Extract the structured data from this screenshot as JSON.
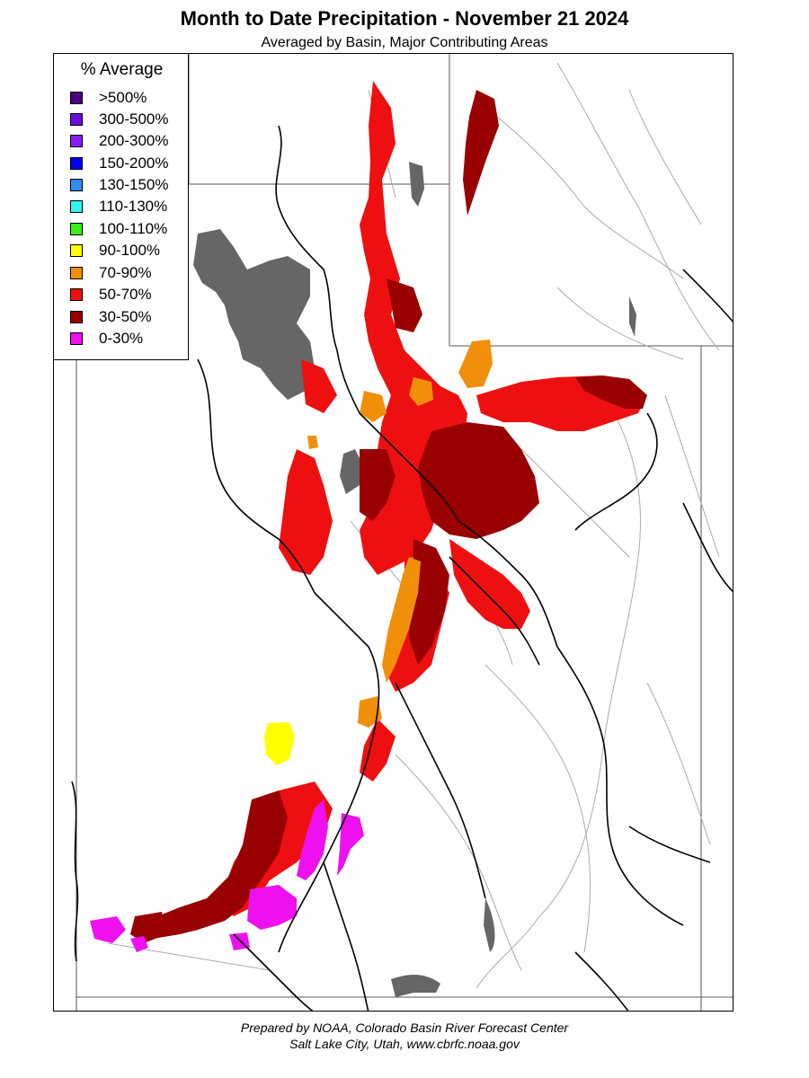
{
  "title": "Month to Date Precipitation - November 21 2024",
  "subtitle": "Averaged by Basin, Major Contributing Areas",
  "legend": {
    "title": "% Average",
    "items": [
      {
        "label": ">500%",
        "color": "#4b0082"
      },
      {
        "label": "300-500%",
        "color": "#6a0dda"
      },
      {
        "label": "200-300%",
        "color": "#8a1cf0"
      },
      {
        "label": "150-200%",
        "color": "#0000ee"
      },
      {
        "label": "130-150%",
        "color": "#2f8cf0"
      },
      {
        "label": "110-130%",
        "color": "#33f5f0"
      },
      {
        "label": "100-110%",
        "color": "#3bee1a"
      },
      {
        "label": "90-100%",
        "color": "#ffff00"
      },
      {
        "label": "70-90%",
        "color": "#f0900a"
      },
      {
        "label": "50-70%",
        "color": "#ee1010"
      },
      {
        "label": "30-50%",
        "color": "#990000"
      },
      {
        "label": "0-30%",
        "color": "#ee10ee"
      }
    ]
  },
  "map_colors": {
    "lake": "#666666",
    "boundary": "#000000",
    "state_line": "#555555",
    "river": "#aaaaaa"
  },
  "footer": {
    "line1": "Prepared by NOAA, Colorado Basin River Forecast Center",
    "line2": "Salt Lake City, Utah, www.cbrfc.noaa.gov"
  }
}
